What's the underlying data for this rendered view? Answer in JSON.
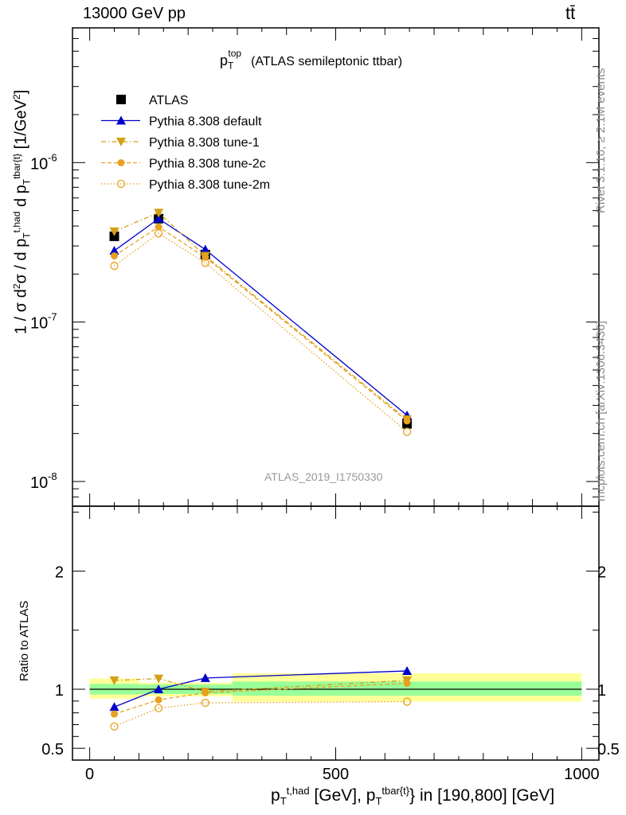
{
  "header": {
    "energy_label": "13000 GeV pp",
    "process_label": "tt̄"
  },
  "side_labels": {
    "rivet": "Rivet 3.1.10, ≥ 2.1M events",
    "mcplots": "mcplots.cern.ch [arXiv:1306.3436]"
  },
  "watermark": "ATLAS_2019_I1750330",
  "chart_data": [
    {
      "type": "line",
      "panel": "main",
      "title": "p_T^top (ATLAS semileptonic ttbar)",
      "ylabel": "1 / σ d²σ / d p_T^{t,had} d p_T^{tbar{t}} [1/GeV²]",
      "yscale": "log",
      "ylim": [
        7e-09,
        7e-06
      ],
      "y_ticks": [
        "10^-8",
        "10^-7",
        "10^-6"
      ],
      "xlim": [
        -35,
        1035
      ],
      "legend_position": "top-left",
      "series": [
        {
          "name": "ATLAS",
          "style": "data",
          "marker": "square",
          "color": "#000000",
          "x": [
            50,
            140,
            235,
            645
          ],
          "values": [
            3.45e-07,
            4.45e-07,
            2.65e-07,
            2.3e-08
          ]
        },
        {
          "name": "Pythia 8.308 default",
          "style": "solid",
          "marker": "triangle-up",
          "color": "#0000cc",
          "x": [
            50,
            140,
            235,
            645
          ],
          "values": [
            2.8e-07,
            4.45e-07,
            2.85e-07,
            2.6e-08
          ]
        },
        {
          "name": "Pythia 8.308 tune-1",
          "style": "dashdot",
          "marker": "triangle-down",
          "color": "#d4a017",
          "x": [
            50,
            140,
            235,
            645
          ],
          "values": [
            3.7e-07,
            4.85e-07,
            2.6e-07,
            2.45e-08
          ]
        },
        {
          "name": "Pythia 8.308 tune-2c",
          "style": "dashed",
          "marker": "circle",
          "color": "#e8a020",
          "x": [
            50,
            140,
            235,
            645
          ],
          "values": [
            2.6e-07,
            3.95e-07,
            2.55e-07,
            2.4e-08
          ]
        },
        {
          "name": "Pythia 8.308 tune-2m",
          "style": "dotted",
          "marker": "open-circle",
          "color": "#e8a020",
          "x": [
            50,
            140,
            235,
            645
          ],
          "values": [
            2.25e-07,
            3.6e-07,
            2.35e-07,
            2.05e-08
          ]
        }
      ]
    },
    {
      "type": "line",
      "panel": "ratio",
      "ylabel": "Ratio to ATLAS",
      "xlabel": "p_T^{t,had} [GeV], p_T^{tbar{t}} in [190,800] [GeV]",
      "xlim": [
        -35,
        1035
      ],
      "ylim": [
        0.4,
        2.55
      ],
      "x_ticks": [
        0,
        500,
        1000
      ],
      "y_ticks": [
        0.5,
        1,
        2
      ],
      "bands": [
        {
          "x0": 0,
          "x1": 100,
          "inner": [
            0.955,
            1.045
          ],
          "outer": [
            0.92,
            1.09
          ]
        },
        {
          "x0": 100,
          "x1": 290,
          "inner": [
            0.96,
            1.04
          ],
          "outer": [
            0.94,
            1.055
          ]
        },
        {
          "x0": 290,
          "x1": 1000,
          "inner": [
            0.945,
            1.065
          ],
          "outer": [
            0.895,
            1.135
          ]
        }
      ],
      "series": [
        {
          "name": "Pythia 8.308 default",
          "x": [
            50,
            140,
            235,
            645
          ],
          "values": [
            0.85,
            1.0,
            1.095,
            1.155
          ]
        },
        {
          "name": "Pythia 8.308 tune-1",
          "x": [
            50,
            140,
            235,
            645
          ],
          "values": [
            1.075,
            1.09,
            0.98,
            1.075
          ]
        },
        {
          "name": "Pythia 8.308 tune-2c",
          "x": [
            50,
            140,
            235,
            645
          ],
          "values": [
            0.79,
            0.91,
            0.97,
            1.05
          ]
        },
        {
          "name": "Pythia 8.308 tune-2m",
          "x": [
            50,
            140,
            235,
            645
          ],
          "values": [
            0.685,
            0.84,
            0.885,
            0.895
          ]
        }
      ]
    }
  ]
}
